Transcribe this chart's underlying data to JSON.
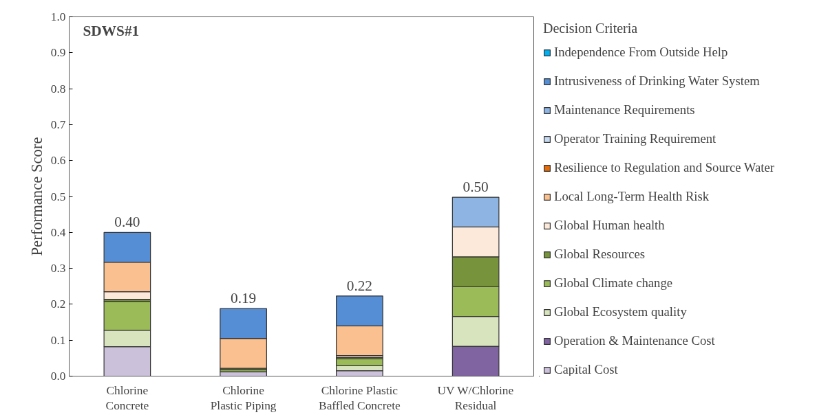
{
  "chart_data": {
    "type": "bar",
    "stacked": true,
    "ylabel": "Performance Score",
    "legend_title": "Decision Criteria",
    "legend": "right",
    "grid": false,
    "annotations": [
      "SDWS#1"
    ],
    "categories": [
      "Chlorine\nConcrete",
      "Chlorine\nPlastic Piping",
      "Chlorine Plastic\nBaffled Concrete",
      "UV W/Chlorine\nResidual"
    ],
    "ylim": [
      0,
      1
    ],
    "yticks": [
      {
        "value": 0,
        "label": "0.0"
      },
      {
        "value": 0.1,
        "label": "0.1"
      },
      {
        "value": 0.2,
        "label": "0.2"
      },
      {
        "value": 0.3,
        "label": "0.3"
      },
      {
        "value": 0.4,
        "label": "0.4"
      },
      {
        "value": 0.5,
        "label": "0.5"
      },
      {
        "value": 0.6,
        "label": "0.6"
      },
      {
        "value": 0.7,
        "label": "0.7"
      },
      {
        "value": 0.8,
        "label": "0.8"
      },
      {
        "value": 0.9,
        "label": "0.9"
      },
      {
        "value": 1,
        "label": "1.0"
      }
    ],
    "totals": [
      "0.40",
      "0.19",
      "0.22",
      "0.50"
    ],
    "series": [
      {
        "name": "Capital Cost",
        "color": "#ccc1da",
        "values": [
          0.082,
          0.012,
          0.015,
          null
        ]
      },
      {
        "name": "Operation & Maintenance Cost",
        "color": "#8064a2",
        "values": [
          null,
          null,
          null,
          0.083
        ]
      },
      {
        "name": "Global Ecosystem quality",
        "color": "#d7e4bd",
        "values": [
          0.046,
          null,
          0.014,
          0.083
        ]
      },
      {
        "name": "Global Climate change",
        "color": "#9bbb59",
        "values": [
          0.08,
          0.006,
          0.019,
          0.083
        ]
      },
      {
        "name": "Global Resources",
        "color": "#77933c",
        "values": [
          0.006,
          0.004,
          0.004,
          0.083
        ]
      },
      {
        "name": "Global Human health",
        "color": "#fde9d9",
        "values": [
          0.021,
          null,
          0.005,
          0.083
        ]
      },
      {
        "name": "Local Long-Term Health Risk",
        "color": "#fac090",
        "values": [
          0.082,
          0.083,
          0.083,
          null
        ]
      },
      {
        "name": "Resilience to Regulation and Source Water",
        "color": "#e46c0a",
        "values": [
          null,
          null,
          null,
          null
        ]
      },
      {
        "name": "Operator Training Requirement",
        "color": "#c6d9f1",
        "values": [
          null,
          null,
          null,
          null
        ]
      },
      {
        "name": "Maintenance Requirements",
        "color": "#8eb4e3",
        "values": [
          null,
          null,
          null,
          0.083
        ]
      },
      {
        "name": "Intrusiveness of Drinking Water System",
        "color": "#558ed5",
        "values": [
          0.083,
          0.083,
          0.083,
          null
        ]
      },
      {
        "name": "Independence From Outside Help",
        "color": "#00b0f0",
        "values": [
          null,
          null,
          null,
          null
        ]
      }
    ]
  }
}
